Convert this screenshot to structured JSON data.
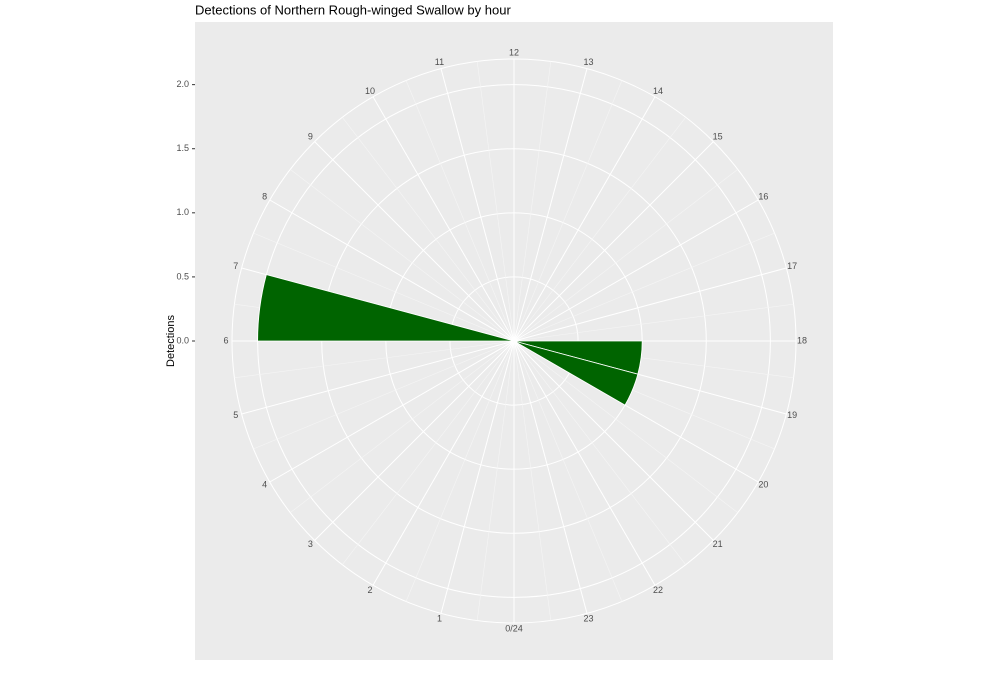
{
  "chart_data": {
    "type": "polar-bar",
    "title": "Detections of Northern Rough-winged Swallow by hour",
    "y_label": "Detections",
    "categories": [
      "0/24",
      "1",
      "2",
      "3",
      "4",
      "5",
      "6",
      "7",
      "8",
      "9",
      "10",
      "11",
      "12",
      "13",
      "14",
      "15",
      "16",
      "17",
      "18",
      "19",
      "20",
      "21",
      "22",
      "23"
    ],
    "values": [
      0,
      0,
      0,
      0,
      0,
      0,
      2,
      0,
      0,
      0,
      0,
      0,
      0,
      0,
      0,
      0,
      0,
      0,
      1,
      1,
      0,
      0,
      0,
      0
    ],
    "color": "#006400",
    "ylim": [
      0,
      2.2
    ],
    "yticks": [
      {
        "value": 0,
        "label": "0.0"
      },
      {
        "value": 0.5,
        "label": "0.5"
      },
      {
        "value": 1,
        "label": "1.0"
      },
      {
        "value": 1.5,
        "label": "1.5"
      },
      {
        "value": 2,
        "label": "2.0"
      }
    ],
    "grid": true
  }
}
